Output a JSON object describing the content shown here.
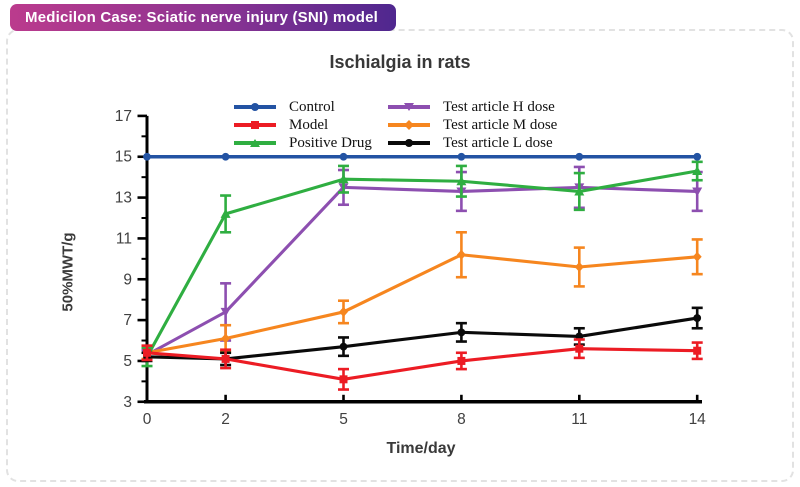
{
  "badge": {
    "label": "Medicilon Case: Sciatic nerve injury (SNI) model",
    "gradient_from": "#bb3b8d",
    "gradient_to": "#4f278f",
    "text_color": "#ffffff"
  },
  "chart_data": {
    "type": "line",
    "title": "Ischialgia in rats",
    "xlabel": "Time/day",
    "ylabel": "50%MWT/g",
    "x": [
      0,
      2,
      5,
      8,
      11,
      14
    ],
    "x_tick_labels": [
      "0",
      "2",
      "5",
      "8",
      "11",
      "14"
    ],
    "y_ticks": [
      3,
      5,
      7,
      9,
      11,
      13,
      15,
      17
    ],
    "y_minor_ticks": [
      4,
      6,
      8,
      10,
      12,
      14,
      16
    ],
    "xlim": [
      0,
      14
    ],
    "ylim": [
      3,
      17
    ],
    "grid": false,
    "error_bars": true,
    "legend_position": "top-inside-two-columns",
    "series": [
      {
        "name": "Control",
        "color": "#2353a3",
        "marker": "circle",
        "values": [
          15,
          15,
          15,
          15,
          15,
          15
        ],
        "errors": [
          0,
          0,
          0,
          0,
          0,
          0
        ]
      },
      {
        "name": "Model",
        "color": "#ec1c24",
        "marker": "square",
        "values": [
          5.4,
          5.1,
          4.1,
          5.0,
          5.6,
          5.5
        ],
        "errors": [
          0.35,
          0.45,
          0.5,
          0.4,
          0.45,
          0.4
        ]
      },
      {
        "name": "Positive Drug",
        "color": "#2fae41",
        "marker": "triangle-up",
        "values": [
          5.2,
          12.2,
          13.9,
          13.8,
          13.3,
          14.3
        ],
        "errors": [
          0.45,
          0.9,
          0.65,
          0.75,
          0.9,
          0.45
        ]
      },
      {
        "name": "Test article H dose",
        "color": "#8d4fb0",
        "marker": "triangle-down",
        "values": [
          5.3,
          7.4,
          13.5,
          13.3,
          13.5,
          13.3
        ],
        "errors": [
          0.25,
          1.4,
          0.85,
          0.95,
          1.0,
          0.95
        ]
      },
      {
        "name": "Test article M dose",
        "color": "#f6861f",
        "marker": "diamond",
        "values": [
          5.4,
          6.1,
          7.4,
          10.2,
          9.6,
          10.1
        ],
        "errors": [
          0.3,
          0.65,
          0.55,
          1.1,
          0.95,
          0.85
        ]
      },
      {
        "name": "Test article L dose",
        "color": "#0a0a0a",
        "marker": "circle",
        "values": [
          5.2,
          5.1,
          5.7,
          6.4,
          6.2,
          7.1
        ],
        "errors": [
          0.2,
          0.3,
          0.45,
          0.45,
          0.4,
          0.5
        ]
      }
    ]
  }
}
